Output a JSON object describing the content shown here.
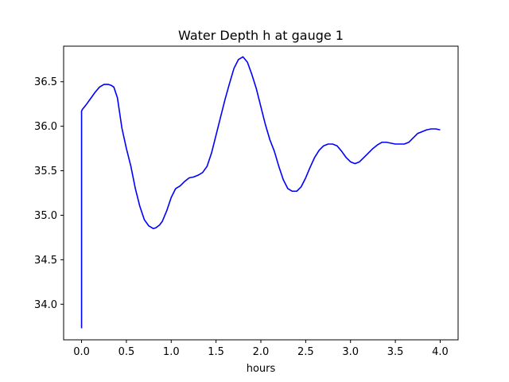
{
  "chart_data": {
    "type": "line",
    "title": "Water Depth h at gauge 1",
    "xlabel": "hours",
    "ylabel": "",
    "xlim": [
      -0.2,
      4.2
    ],
    "ylim": [
      33.6,
      36.9
    ],
    "xticks": [
      0.0,
      0.5,
      1.0,
      1.5,
      2.0,
      2.5,
      3.0,
      3.5,
      4.0
    ],
    "xtick_labels": [
      "0.0",
      "0.5",
      "1.0",
      "1.5",
      "2.0",
      "2.5",
      "3.0",
      "3.5",
      "4.0"
    ],
    "yticks": [
      34.0,
      34.5,
      35.0,
      35.5,
      36.0,
      36.5
    ],
    "ytick_labels": [
      "34.0",
      "34.5",
      "35.0",
      "35.5",
      "36.0",
      "36.5"
    ],
    "grid": false,
    "legend": "none",
    "series": [
      {
        "color": "#0000ff",
        "x": [
          0.0,
          0.0,
          0.01,
          0.05,
          0.1,
          0.15,
          0.2,
          0.25,
          0.3,
          0.33,
          0.36,
          0.4,
          0.45,
          0.5,
          0.55,
          0.6,
          0.65,
          0.7,
          0.75,
          0.8,
          0.83,
          0.87,
          0.9,
          0.95,
          1.0,
          1.05,
          1.1,
          1.15,
          1.2,
          1.25,
          1.3,
          1.35,
          1.4,
          1.45,
          1.5,
          1.55,
          1.6,
          1.65,
          1.7,
          1.75,
          1.8,
          1.85,
          1.9,
          1.95,
          2.0,
          2.05,
          2.1,
          2.15,
          2.2,
          2.25,
          2.3,
          2.35,
          2.4,
          2.45,
          2.5,
          2.55,
          2.6,
          2.65,
          2.7,
          2.75,
          2.8,
          2.85,
          2.9,
          2.95,
          3.0,
          3.05,
          3.1,
          3.15,
          3.2,
          3.25,
          3.3,
          3.35,
          3.4,
          3.45,
          3.5,
          3.55,
          3.6,
          3.65,
          3.7,
          3.75,
          3.8,
          3.85,
          3.9,
          3.95,
          4.0
        ],
        "y": [
          33.73,
          36.17,
          36.19,
          36.24,
          36.31,
          36.38,
          36.44,
          36.47,
          36.47,
          36.46,
          36.44,
          36.32,
          35.98,
          35.75,
          35.55,
          35.3,
          35.1,
          34.95,
          34.88,
          34.85,
          34.86,
          34.89,
          34.93,
          35.05,
          35.2,
          35.3,
          35.33,
          35.38,
          35.42,
          35.43,
          35.45,
          35.48,
          35.55,
          35.7,
          35.9,
          36.1,
          36.3,
          36.48,
          36.65,
          36.75,
          36.78,
          36.72,
          36.58,
          36.42,
          36.22,
          36.02,
          35.85,
          35.72,
          35.55,
          35.4,
          35.3,
          35.27,
          35.27,
          35.32,
          35.42,
          35.54,
          35.65,
          35.73,
          35.78,
          35.8,
          35.8,
          35.78,
          35.72,
          35.65,
          35.6,
          35.58,
          35.6,
          35.65,
          35.7,
          35.75,
          35.79,
          35.82,
          35.82,
          35.81,
          35.8,
          35.8,
          35.8,
          35.82,
          35.87,
          35.92,
          35.94,
          35.96,
          35.97,
          35.97,
          35.96
        ]
      }
    ]
  }
}
